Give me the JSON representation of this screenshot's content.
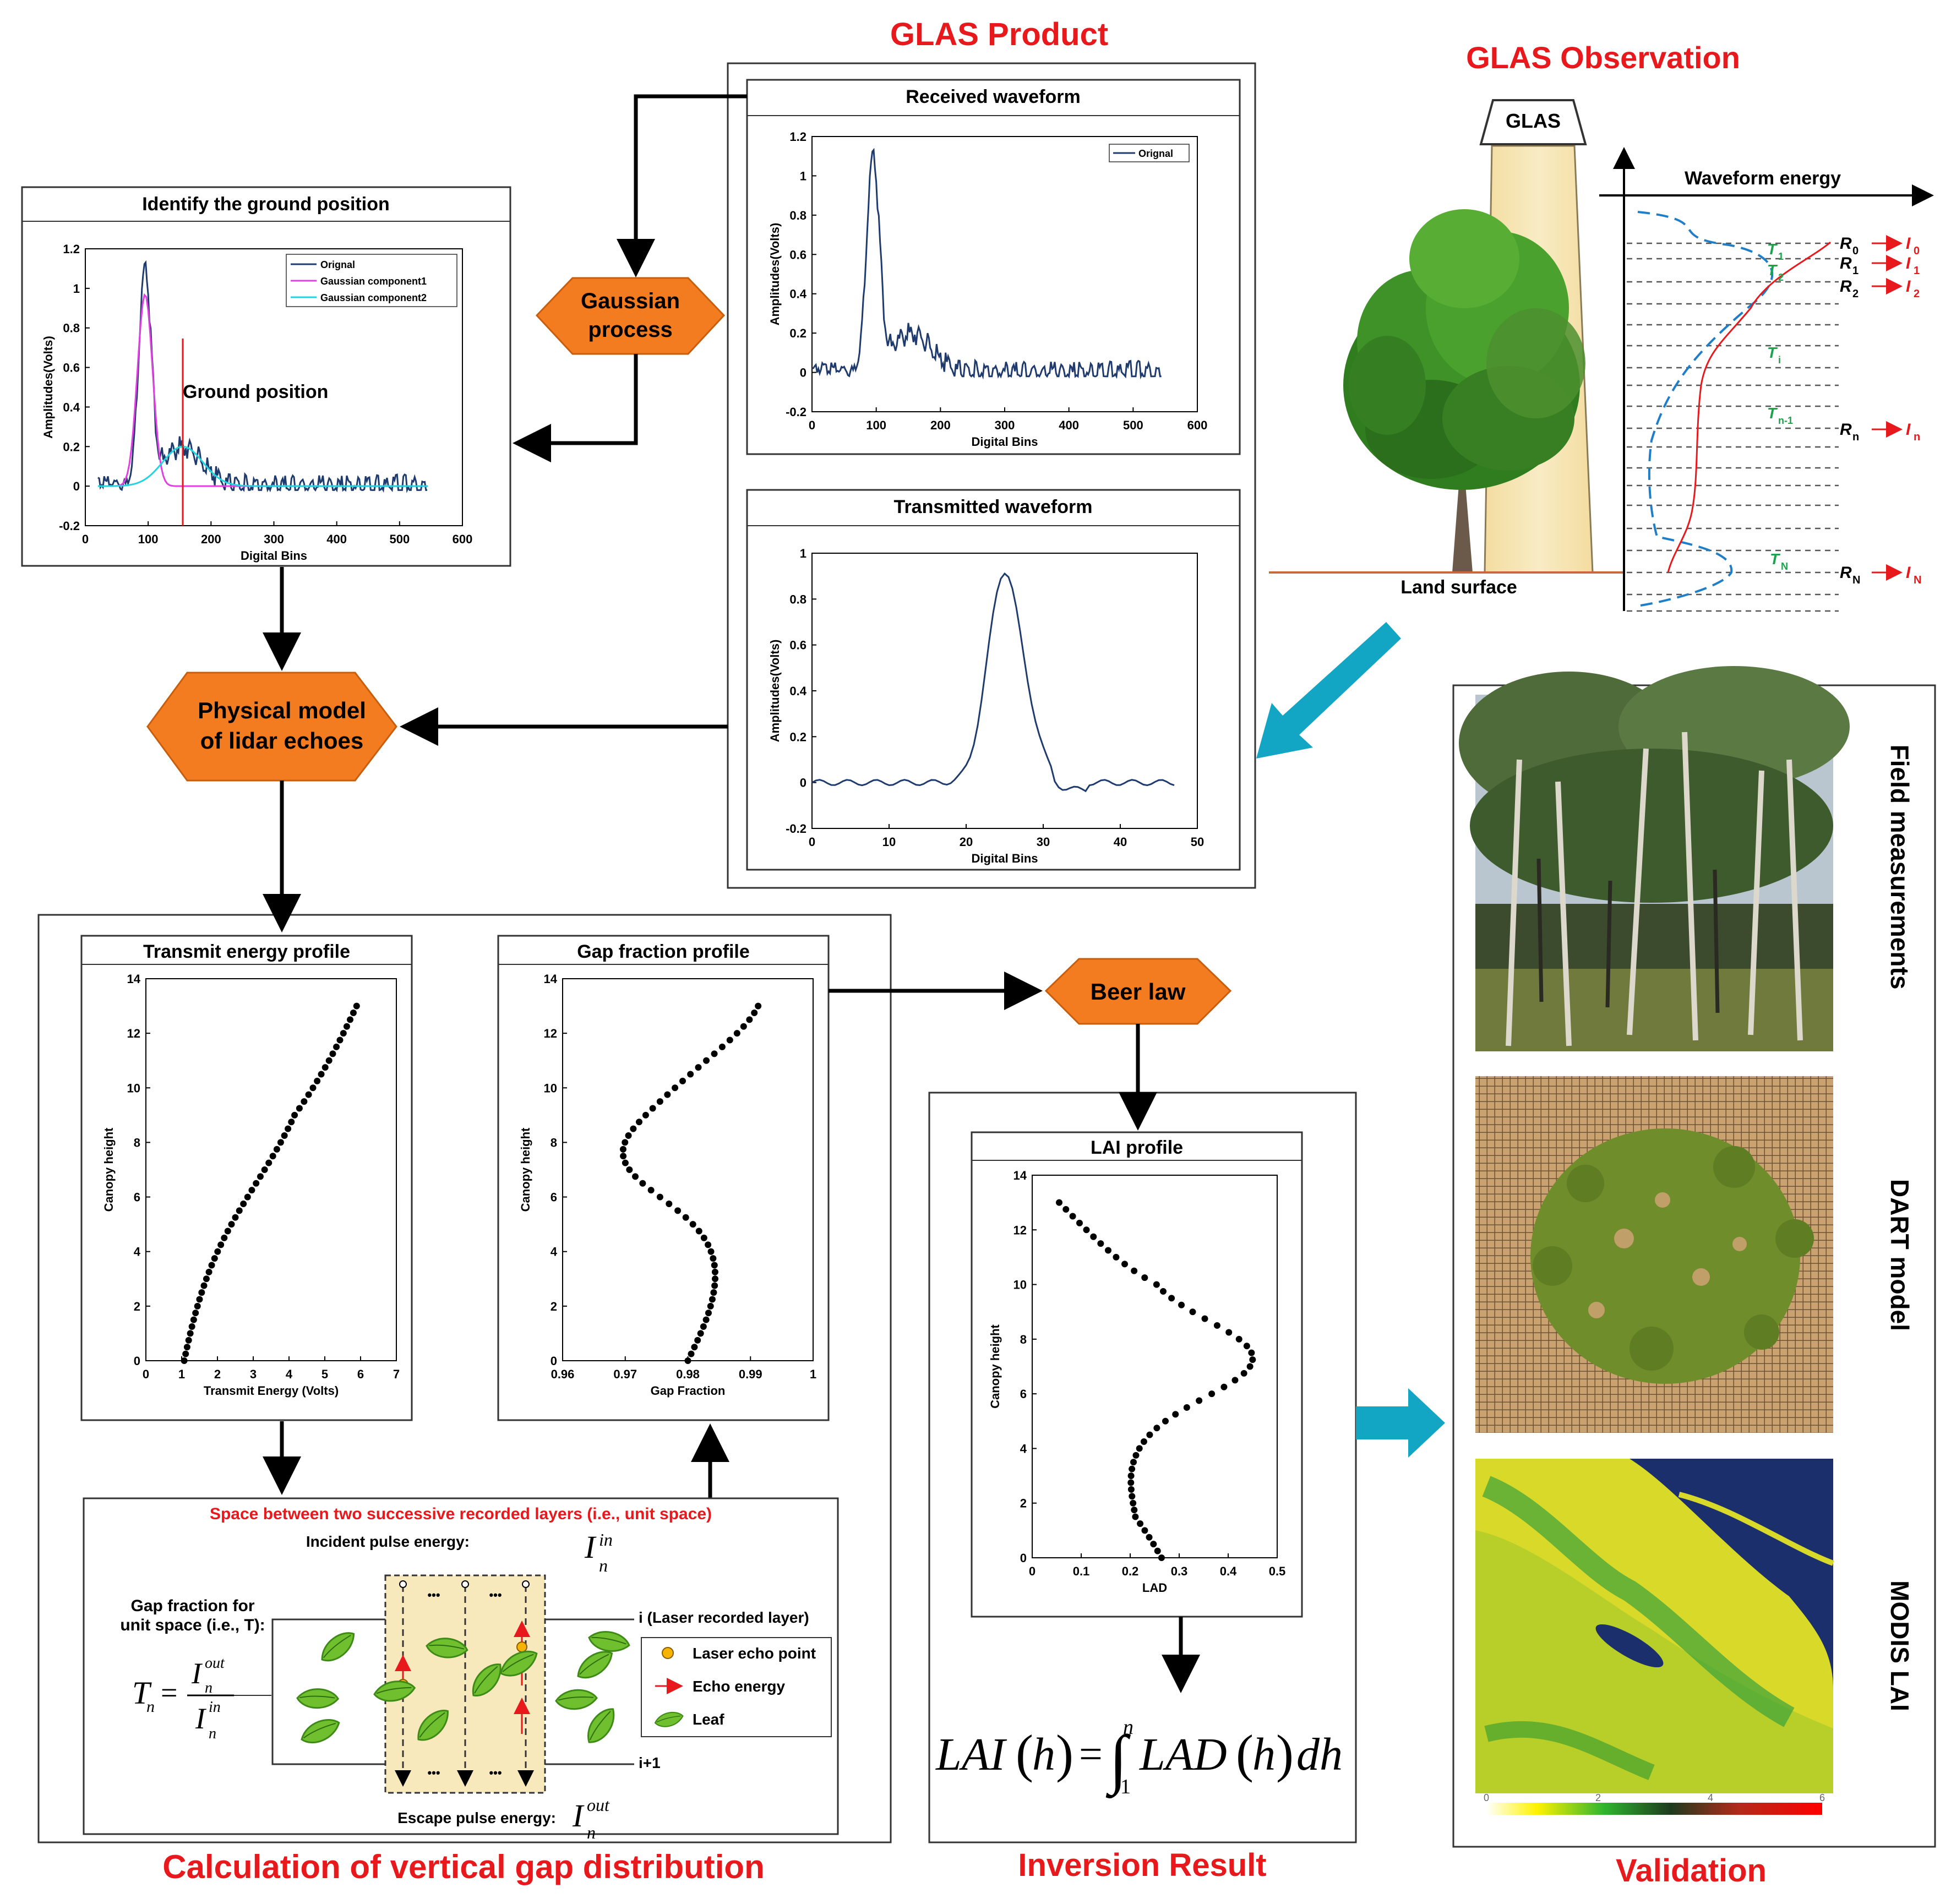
{
  "sections": {
    "glas_product": "GLAS Product",
    "glas_observation": "GLAS Observation",
    "calc_gap": "Calculation of vertical gap distribution",
    "inversion": "Inversion Result",
    "validation": "Validation"
  },
  "process_nodes": {
    "gaussian": [
      "Gaussian",
      "process"
    ],
    "physical": [
      "Physical model",
      "of lidar echoes"
    ],
    "beer": "Beer law"
  },
  "colors": {
    "node_fill": "#f47c20",
    "title_red": "#e8191c",
    "arrow_cyan": "#12a6c4"
  },
  "panels": {
    "received": {
      "title": "Received waveform",
      "xlabel": "Digital Bins",
      "ylabel": "Amplitudes(Volts)",
      "xticks": [
        "0",
        "100",
        "200",
        "300",
        "400",
        "500",
        "600"
      ],
      "yticks": [
        "-0.2",
        "0",
        "0.2",
        "0.4",
        "0.6",
        "0.8",
        "1",
        "1.2"
      ],
      "legend": [
        "Orignal"
      ]
    },
    "transmitted": {
      "title": "Transmitted waveform",
      "xlabel": "Digital Bins",
      "ylabel": "Amplitudes(Volts)",
      "xticks": [
        "0",
        "10",
        "20",
        "30",
        "40",
        "50"
      ],
      "yticks": [
        "-0.2",
        "0",
        "0.2",
        "0.4",
        "0.6",
        "0.8",
        "1"
      ]
    },
    "ground": {
      "title": "Identify the ground position",
      "xlabel": "Digital Bins",
      "ylabel": "Amplitudes(Volts)",
      "xticks": [
        "0",
        "100",
        "200",
        "300",
        "400",
        "500",
        "600"
      ],
      "yticks": [
        "-0.2",
        "0",
        "0.2",
        "0.4",
        "0.6",
        "0.8",
        "1",
        "1.2"
      ],
      "legend": [
        "Orignal",
        "Gaussian component1",
        "Gaussian component2"
      ],
      "annotation": "Ground position"
    },
    "transmit_energy": {
      "title": "Transmit energy profile",
      "xlabel": "Transmit Energy (Volts)",
      "ylabel": "Canopy height",
      "xticks": [
        "0",
        "1",
        "2",
        "3",
        "4",
        "5",
        "6",
        "7"
      ],
      "yticks": [
        "0",
        "2",
        "4",
        "6",
        "8",
        "10",
        "12",
        "14"
      ]
    },
    "gap_fraction": {
      "title": "Gap fraction profile",
      "xlabel": "Gap  Fraction",
      "ylabel": "Canopy height",
      "xticks": [
        "0.96",
        "0.97",
        "0.98",
        "0.99",
        "1"
      ],
      "yticks": [
        "0",
        "2",
        "4",
        "6",
        "8",
        "10",
        "12",
        "14"
      ]
    },
    "lai": {
      "title": "LAI profile",
      "xlabel": "LAD",
      "ylabel": "Canopy height",
      "xticks": [
        "0",
        "0.1",
        "0.2",
        "0.3",
        "0.4",
        "0.5"
      ],
      "yticks": [
        "0",
        "2",
        "4",
        "6",
        "8",
        "10",
        "12",
        "14"
      ]
    }
  },
  "observation": {
    "instrument": "GLAS",
    "waveform_energy": "Waveform energy",
    "land_surface": "Land surface",
    "levels": [
      {
        "r": "R",
        "sub": "0",
        "i": "I",
        "isub": "0"
      },
      {
        "r": "R",
        "sub": "1",
        "i": "I",
        "isub": "1"
      },
      {
        "r": "R",
        "sub": "2",
        "i": "I",
        "isub": "2"
      },
      {
        "r": "R",
        "sub": "n",
        "i": "I",
        "isub": "n"
      },
      {
        "r": "R",
        "sub": "N",
        "i": "I",
        "isub": "N"
      }
    ],
    "t_labels": [
      {
        "t": "T",
        "sub": "1"
      },
      {
        "t": "T",
        "sub": "2"
      },
      {
        "t": "T",
        "sub": "i"
      },
      {
        "t": "T",
        "sub": "n-1"
      },
      {
        "t": "T",
        "sub": "N"
      }
    ]
  },
  "unit_space": {
    "title": "Space between two successive recorded layers (i.e., unit space)",
    "incident": "Incident pulse energy:",
    "escape": "Escape pulse energy:",
    "gap_label": [
      "Gap fraction for",
      "unit space (i.e., T):"
    ],
    "layer_i": "i (Laser recorded layer)",
    "layer_i1": "i+1",
    "legend": [
      "Laser echo point",
      "Echo energy",
      "Leaf"
    ],
    "dots": "•••"
  },
  "validation_panels": {
    "field": "Field measurements",
    "dart": "DART model",
    "modis": "MODIS LAI",
    "colorbar_ticks": [
      "0",
      "2",
      "4",
      "6"
    ]
  },
  "icons": [
    "tree-icon",
    "leaf-icon",
    "arrow-icon"
  ]
}
